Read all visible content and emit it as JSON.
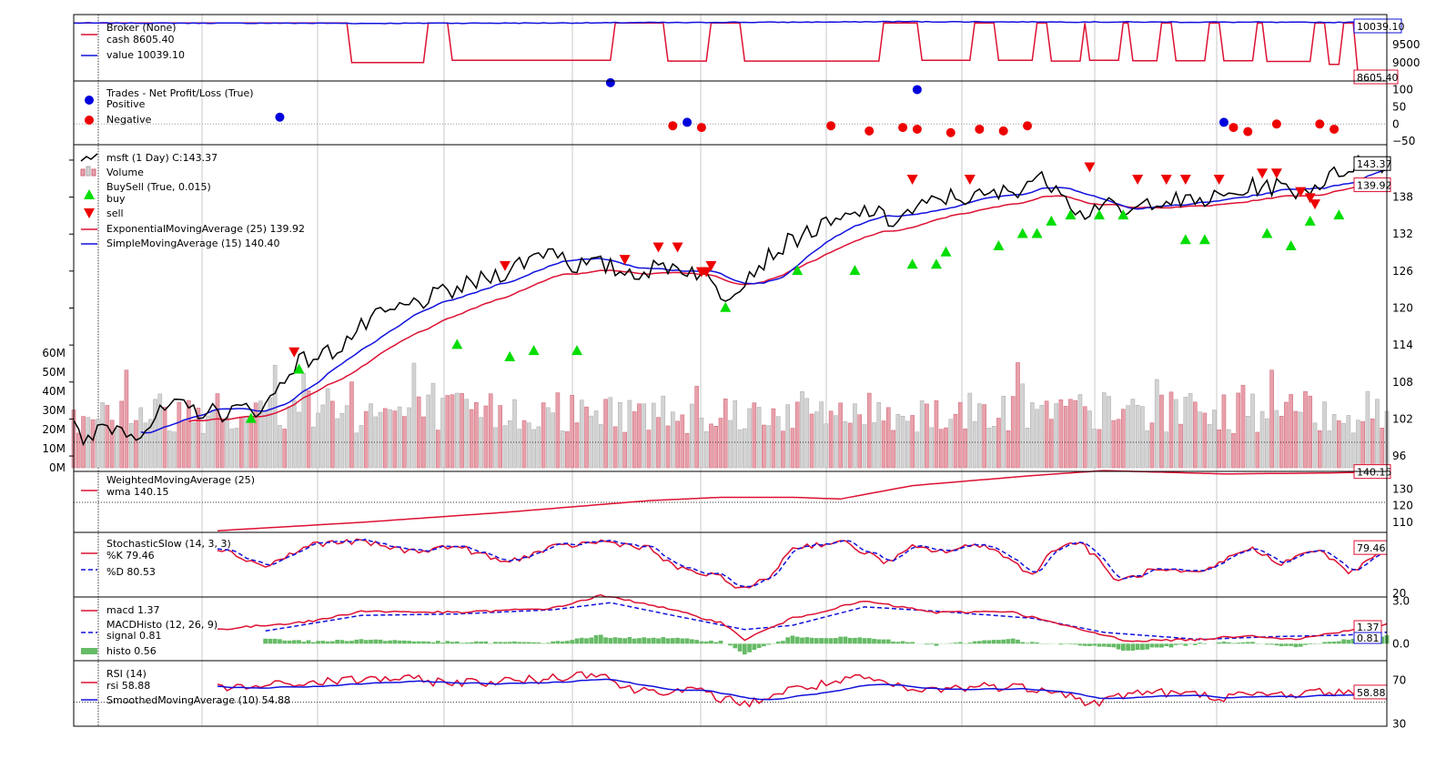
{
  "chart_data": {
    "type": "line",
    "panels": {
      "broker": {
        "legend": [
          "Broker (None)",
          "cash 8605.40",
          "value 10039.10"
        ],
        "ylim": [
          8450,
          10250
        ],
        "yticks": [
          "9500",
          "9000"
        ],
        "tag_value": "10039.10",
        "tag_cash": "8605.40",
        "colors": {
          "cash": "#dd1133",
          "value": "#1111dd"
        }
      },
      "trades": {
        "legend": [
          "Trades - Net Profit/Loss (True)",
          "Positive",
          "Negative"
        ],
        "ylim": [
          -60,
          125
        ],
        "yticks": [
          "100",
          "50",
          "0",
          "−50"
        ],
        "positive": [
          [
            43,
            20
          ],
          [
            112,
            120
          ],
          [
            128,
            5
          ],
          [
            176,
            100
          ],
          [
            240,
            5
          ]
        ],
        "negative": [
          [
            125,
            -5
          ],
          [
            131,
            -10
          ],
          [
            158,
            -5
          ],
          [
            166,
            -20
          ],
          [
            173,
            -10
          ],
          [
            176,
            -15
          ],
          [
            183,
            -25
          ],
          [
            189,
            -15
          ],
          [
            194,
            -20
          ],
          [
            199,
            -5
          ],
          [
            242,
            -10
          ],
          [
            245,
            -22
          ],
          [
            251,
            0
          ],
          [
            260,
            0
          ],
          [
            263,
            -15
          ]
        ],
        "colors": {
          "positive": "#0000dd",
          "negative": "#ee0000"
        }
      },
      "price": {
        "legend": [
          "msft (1 Day) C:143.37",
          "Volume",
          "BuySell (True, 0.015)",
          "buy",
          "sell",
          "ExponentialMovingAverage (25) 139.92",
          "SimpleMovingAverage (15) 140.40"
        ],
        "ylim": [
          93.5,
          146.5
        ],
        "yticks": [
          "138",
          "132",
          "126",
          "120",
          "114",
          "108",
          "102",
          "96"
        ],
        "vol_ticks": [
          "60M",
          "50M",
          "40M",
          "30M",
          "20M",
          "10M",
          "0M"
        ],
        "tag_close": "143.37",
        "tag_ema": "139.92",
        "buys": [
          [
            37,
            103
          ],
          [
            47,
            111
          ],
          [
            80,
            115
          ],
          [
            91,
            113
          ],
          [
            96,
            114
          ],
          [
            105,
            114
          ],
          [
            136,
            121
          ],
          [
            151,
            127
          ],
          [
            163,
            127
          ],
          [
            175,
            128
          ],
          [
            180,
            128
          ],
          [
            182,
            130
          ],
          [
            193,
            131
          ],
          [
            198,
            133
          ],
          [
            201,
            133
          ],
          [
            204,
            135
          ],
          [
            208,
            136
          ],
          [
            214,
            136
          ],
          [
            219,
            136
          ],
          [
            232,
            132
          ],
          [
            236,
            132
          ],
          [
            249,
            133
          ],
          [
            254,
            131
          ],
          [
            258,
            135
          ],
          [
            264,
            136
          ]
        ],
        "sells": [
          [
            46,
            112
          ],
          [
            90,
            126
          ],
          [
            115,
            127
          ],
          [
            122,
            129
          ],
          [
            126,
            129
          ],
          [
            131,
            125
          ],
          [
            132,
            125
          ],
          [
            133,
            126
          ],
          [
            175,
            140
          ],
          [
            187,
            140
          ],
          [
            212,
            142
          ],
          [
            222,
            140
          ],
          [
            228,
            140
          ],
          [
            232,
            140
          ],
          [
            239,
            140
          ],
          [
            248,
            141
          ],
          [
            251,
            141
          ],
          [
            256,
            138
          ],
          [
            258,
            137
          ],
          [
            259,
            136
          ]
        ],
        "colors": {
          "close": "#000000",
          "ema": "#dd1133",
          "sma": "#1111dd",
          "buy": "#00dd00",
          "sell": "#ee0000",
          "vol_up": "#d3d3d3",
          "vol_down": "#e8a0aa"
        }
      },
      "wma": {
        "legend": [
          "WeightedMovingAverage (25)",
          "wma 140.15"
        ],
        "ylim": [
          104,
          140.5
        ],
        "yticks": [
          "130",
          "120",
          "110"
        ],
        "tag": "140.15",
        "ref_line": 122
      },
      "stoch": {
        "legend": [
          "StochasticSlow (14, 3, 3)",
          "%K 79.46",
          "%D 80.53"
        ],
        "ylim": [
          15,
          100
        ],
        "yticks": [
          "20"
        ],
        "tag": "79.46"
      },
      "macd": {
        "legend": [
          "macd 1.37",
          "MACDHisto (12, 26, 9)",
          "signal 0.81",
          "histo 0.56"
        ],
        "ylim": [
          -1.2,
          3.3
        ],
        "yticks": [
          "3.0",
          "0.0"
        ],
        "tag_macd": "1.37",
        "tag_signal": "0.81",
        "colors": {
          "histo": "#66bb66"
        }
      },
      "rsi": {
        "legend": [
          "RSI (14)",
          "rsi 58.88",
          "SmoothedMovingAverage (10) 54.88"
        ],
        "ylim": [
          28,
          88
        ],
        "yticks": [
          "70",
          "30"
        ],
        "tag": "58.88",
        "ref_line": 50
      }
    }
  }
}
